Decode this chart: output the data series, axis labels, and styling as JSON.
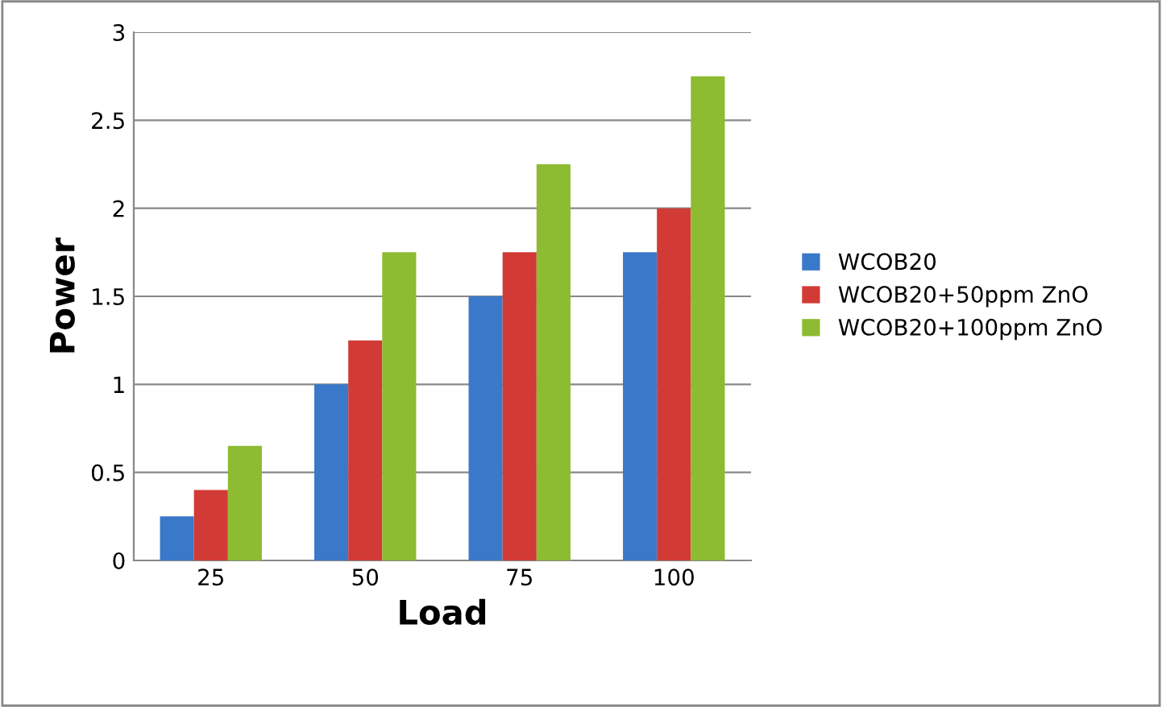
{
  "chart_data": {
    "type": "bar",
    "xlabel": "Load",
    "ylabel": "Power",
    "categories": [
      "25",
      "50",
      "75",
      "100"
    ],
    "series": [
      {
        "name": "WCOB20",
        "color": "#3a78c9",
        "values": [
          0.25,
          1.0,
          1.5,
          1.75
        ]
      },
      {
        "name": "WCOB20+50ppm ZnO",
        "color": "#d23a35",
        "values": [
          0.4,
          1.25,
          1.75,
          2.0
        ]
      },
      {
        "name": "WCOB20+100ppm ZnO",
        "color": "#8dbb31",
        "values": [
          0.65,
          1.75,
          2.25,
          2.75
        ]
      }
    ],
    "ylim": [
      0,
      3
    ],
    "yticks": [
      0,
      0.5,
      1,
      1.5,
      2,
      2.5,
      3
    ],
    "grid": "y",
    "legend": "right"
  }
}
